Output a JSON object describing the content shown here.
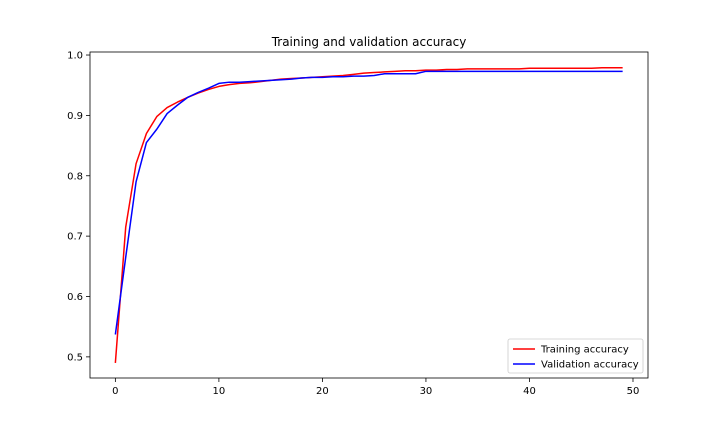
{
  "chart_data": {
    "type": "line",
    "title": "Training and validation accuracy",
    "xlabel": "",
    "ylabel": "",
    "xlim": [
      -2.45,
      51.45
    ],
    "ylim": [
      0.465,
      1.005
    ],
    "xticks": [
      0,
      10,
      20,
      30,
      40,
      50
    ],
    "yticks": [
      0.5,
      0.6,
      0.7,
      0.8,
      0.9,
      1.0
    ],
    "xtick_labels": [
      "0",
      "10",
      "20",
      "30",
      "40",
      "50"
    ],
    "ytick_labels": [
      "0.5",
      "0.6",
      "0.7",
      "0.8",
      "0.9",
      "1.0"
    ],
    "grid": false,
    "legend_position": "lower-right",
    "x": [
      0,
      1,
      2,
      3,
      4,
      5,
      6,
      7,
      8,
      9,
      10,
      11,
      12,
      13,
      14,
      15,
      16,
      17,
      18,
      19,
      20,
      21,
      22,
      23,
      24,
      25,
      26,
      27,
      28,
      29,
      30,
      31,
      32,
      33,
      34,
      35,
      36,
      37,
      38,
      39,
      40,
      41,
      42,
      43,
      44,
      45,
      46,
      47,
      48,
      49
    ],
    "series": [
      {
        "name": "Training accuracy",
        "color": "#ff0000",
        "values": [
          0.49,
          0.715,
          0.82,
          0.87,
          0.898,
          0.913,
          0.922,
          0.93,
          0.937,
          0.943,
          0.948,
          0.951,
          0.953,
          0.954,
          0.956,
          0.958,
          0.96,
          0.961,
          0.962,
          0.963,
          0.964,
          0.965,
          0.966,
          0.968,
          0.97,
          0.971,
          0.972,
          0.973,
          0.974,
          0.974,
          0.975,
          0.975,
          0.976,
          0.976,
          0.977,
          0.977,
          0.977,
          0.977,
          0.977,
          0.977,
          0.978,
          0.978,
          0.978,
          0.978,
          0.978,
          0.978,
          0.978,
          0.979,
          0.979,
          0.979
        ]
      },
      {
        "name": "Validation accuracy",
        "color": "#0000ff",
        "values": [
          0.537,
          0.665,
          0.79,
          0.855,
          0.877,
          0.903,
          0.917,
          0.93,
          0.938,
          0.945,
          0.953,
          0.955,
          0.955,
          0.956,
          0.957,
          0.958,
          0.959,
          0.96,
          0.962,
          0.963,
          0.963,
          0.964,
          0.964,
          0.965,
          0.965,
          0.966,
          0.969,
          0.969,
          0.969,
          0.969,
          0.973,
          0.973,
          0.973,
          0.973,
          0.973,
          0.973,
          0.973,
          0.973,
          0.973,
          0.973,
          0.973,
          0.973,
          0.973,
          0.973,
          0.973,
          0.973,
          0.973,
          0.973,
          0.973,
          0.973
        ]
      }
    ]
  }
}
